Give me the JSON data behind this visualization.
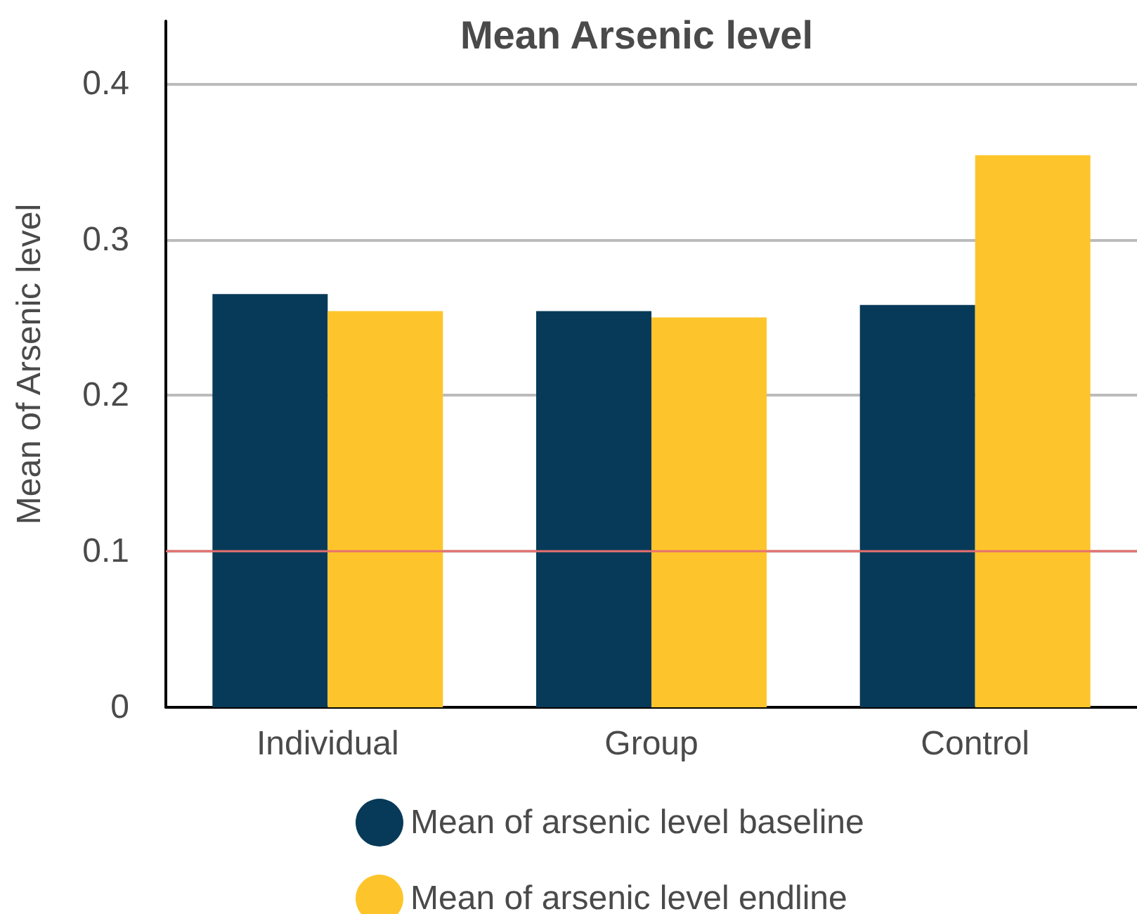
{
  "chart_data": {
    "type": "bar",
    "title": "Mean Arsenic level",
    "ylabel": "Mean of Arsenic level",
    "categories": [
      "Individual",
      "Group",
      "Control"
    ],
    "series": [
      {
        "name": "Mean of arsenic level baseline",
        "color": "#073a58",
        "values": [
          0.265,
          0.254,
          0.258
        ]
      },
      {
        "name": "Mean of arsenic level endline",
        "color": "#fdc52b",
        "values": [
          0.254,
          0.25,
          0.354
        ]
      }
    ],
    "ylim": [
      0,
      0.44
    ],
    "yticks": [
      0,
      0.1,
      0.2,
      0.3,
      0.4
    ],
    "grid": "y",
    "legend": "bottom",
    "ref_lines": [
      {
        "axis": "y",
        "value": 0.1,
        "color": "#e8706f"
      }
    ]
  }
}
